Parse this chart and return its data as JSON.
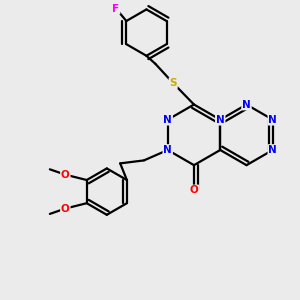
{
  "background_color": "#ebebeb",
  "atom_colors": {
    "N": "#0000ff",
    "O": "#ff0000",
    "S": "#ccaa00",
    "F": "#ff00ff",
    "C": "#000000"
  },
  "bond_color": "#000000",
  "figsize": [
    3.0,
    3.0
  ],
  "dpi": 100
}
